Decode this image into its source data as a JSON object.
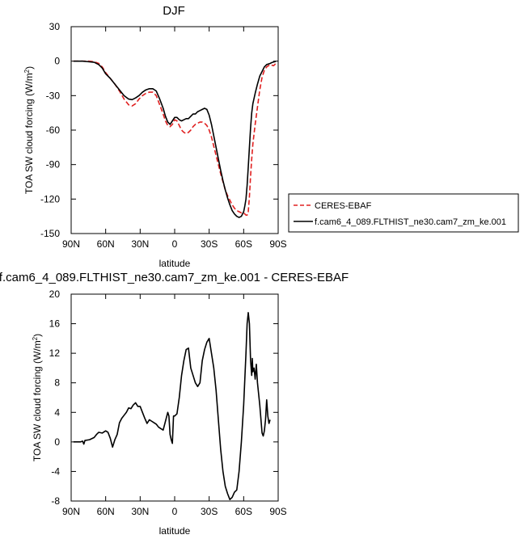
{
  "chart_data": [
    {
      "type": "line",
      "title": "DJF",
      "xlabel": "latitude",
      "ylabel": "TOA SW cloud forcing (W/m",
      "ylabel_superscript": "2",
      "ylabel_close": ")",
      "xlim": [
        90,
        -90
      ],
      "ylim": [
        -150,
        30
      ],
      "xticks": [
        90,
        60,
        30,
        0,
        -30,
        -60,
        -90
      ],
      "xtick_labels": [
        "90N",
        "60N",
        "30N",
        "0",
        "30S",
        "60S",
        "90S"
      ],
      "yticks": [
        -150,
        -120,
        -90,
        -60,
        -30,
        0,
        30
      ],
      "ytick_labels": [
        "-150",
        "-120",
        "-90",
        "-60",
        "-30",
        "0",
        "30"
      ],
      "legend_position": "right",
      "series": [
        {
          "name": "CERES-EBAF",
          "color": "#e02020",
          "dash": "dashed",
          "points": [
            [
              88,
              0
            ],
            [
              85,
              0
            ],
            [
              80,
              0
            ],
            [
              75,
              0
            ],
            [
              70,
              -0.5
            ],
            [
              66,
              -2
            ],
            [
              63,
              -5
            ],
            [
              60,
              -10
            ],
            [
              56,
              -15
            ],
            [
              52,
              -20
            ],
            [
              48,
              -26
            ],
            [
              44,
              -33
            ],
            [
              40,
              -38
            ],
            [
              37,
              -39
            ],
            [
              34,
              -37
            ],
            [
              31,
              -33
            ],
            [
              28,
              -30
            ],
            [
              25,
              -28
            ],
            [
              22,
              -27
            ],
            [
              19,
              -27
            ],
            [
              16,
              -30
            ],
            [
              13,
              -38
            ],
            [
              10,
              -46
            ],
            [
              8,
              -52
            ],
            [
              6,
              -56
            ],
            [
              4,
              -57
            ],
            [
              2,
              -55
            ],
            [
              0,
              -51
            ],
            [
              -2,
              -52
            ],
            [
              -4,
              -56
            ],
            [
              -6,
              -60
            ],
            [
              -8,
              -62
            ],
            [
              -10,
              -63
            ],
            [
              -12,
              -62
            ],
            [
              -14,
              -60
            ],
            [
              -16,
              -57
            ],
            [
              -18,
              -55
            ],
            [
              -20,
              -54
            ],
            [
              -22,
              -53
            ],
            [
              -24,
              -53
            ],
            [
              -26,
              -54
            ],
            [
              -28,
              -56
            ],
            [
              -30,
              -60
            ],
            [
              -32,
              -66
            ],
            [
              -34,
              -74
            ],
            [
              -36,
              -82
            ],
            [
              -38,
              -90
            ],
            [
              -40,
              -98
            ],
            [
              -42,
              -105
            ],
            [
              -44,
              -112
            ],
            [
              -46,
              -117
            ],
            [
              -48,
              -121
            ],
            [
              -50,
              -125
            ],
            [
              -52,
              -128
            ],
            [
              -54,
              -130
            ],
            [
              -56,
              -131
            ],
            [
              -58,
              -132
            ],
            [
              -60,
              -132
            ],
            [
              -62,
              -134
            ],
            [
              -63,
              -134
            ],
            [
              -64,
              -131
            ],
            [
              -65,
              -118
            ],
            [
              -66,
              -100
            ],
            [
              -67,
              -85
            ],
            [
              -68,
              -72
            ],
            [
              -70,
              -55
            ],
            [
              -72,
              -40
            ],
            [
              -74,
              -25
            ],
            [
              -76,
              -14
            ],
            [
              -78,
              -8
            ],
            [
              -80,
              -5
            ],
            [
              -83,
              -3
            ],
            [
              -86,
              -4
            ],
            [
              -87,
              -3
            ],
            [
              -88,
              -2
            ]
          ]
        },
        {
          "name": "f.cam6_4_089.FLTHIST_ne30.cam7_zm_ke.001",
          "color": "#000000",
          "dash": "solid",
          "points": [
            [
              88,
              0
            ],
            [
              85,
              0
            ],
            [
              80,
              0
            ],
            [
              75,
              -0.5
            ],
            [
              70,
              -1
            ],
            [
              66,
              -3
            ],
            [
              63,
              -6
            ],
            [
              60,
              -11
            ],
            [
              56,
              -15
            ],
            [
              52,
              -20
            ],
            [
              48,
              -25
            ],
            [
              44,
              -30
            ],
            [
              40,
              -33
            ],
            [
              37,
              -33.5
            ],
            [
              34,
              -32
            ],
            [
              31,
              -30
            ],
            [
              28,
              -27
            ],
            [
              25,
              -25
            ],
            [
              22,
              -24
            ],
            [
              19,
              -24
            ],
            [
              16,
              -26
            ],
            [
              13,
              -33
            ],
            [
              10,
              -41
            ],
            [
              8,
              -48
            ],
            [
              6,
              -53
            ],
            [
              4,
              -55
            ],
            [
              2,
              -52
            ],
            [
              0,
              -49
            ],
            [
              -2,
              -49
            ],
            [
              -4,
              -51
            ],
            [
              -6,
              -52
            ],
            [
              -8,
              -51
            ],
            [
              -10,
              -50
            ],
            [
              -12,
              -50
            ],
            [
              -14,
              -48
            ],
            [
              -16,
              -46
            ],
            [
              -18,
              -46
            ],
            [
              -20,
              -44
            ],
            [
              -22,
              -43
            ],
            [
              -24,
              -42
            ],
            [
              -26,
              -41
            ],
            [
              -28,
              -42
            ],
            [
              -30,
              -47
            ],
            [
              -32,
              -55
            ],
            [
              -34,
              -65
            ],
            [
              -36,
              -75
            ],
            [
              -38,
              -85
            ],
            [
              -40,
              -95
            ],
            [
              -42,
              -104
            ],
            [
              -44,
              -112
            ],
            [
              -46,
              -119
            ],
            [
              -48,
              -125
            ],
            [
              -50,
              -130
            ],
            [
              -52,
              -133
            ],
            [
              -54,
              -135
            ],
            [
              -56,
              -136
            ],
            [
              -58,
              -135
            ],
            [
              -60,
              -131
            ],
            [
              -61,
              -126
            ],
            [
              -62,
              -120
            ],
            [
              -63,
              -108
            ],
            [
              -64,
              -92
            ],
            [
              -65,
              -75
            ],
            [
              -66,
              -58
            ],
            [
              -67,
              -45
            ],
            [
              -68,
              -37
            ],
            [
              -70,
              -28
            ],
            [
              -72,
              -20
            ],
            [
              -74,
              -13
            ],
            [
              -76,
              -9
            ],
            [
              -78,
              -5
            ],
            [
              -80,
              -3
            ],
            [
              -83,
              -2
            ],
            [
              -85,
              -1
            ],
            [
              -87,
              -0.5
            ],
            [
              -88,
              0
            ]
          ]
        }
      ]
    },
    {
      "type": "line",
      "title": "f.cam6_4_089.FLTHIST_ne30.cam7_zm_ke.001 - CERES-EBAF",
      "xlabel": "latitude",
      "ylabel": "TOA SW cloud forcing (W/m",
      "ylabel_superscript": "2",
      "ylabel_close": ")",
      "xlim": [
        90,
        -90
      ],
      "ylim": [
        -8,
        20
      ],
      "xticks": [
        90,
        60,
        30,
        0,
        -30,
        -60,
        -90
      ],
      "xtick_labels": [
        "90N",
        "60N",
        "30N",
        "0",
        "30S",
        "60S",
        "90S"
      ],
      "yticks": [
        -8,
        -4,
        0,
        4,
        8,
        12,
        16,
        20
      ],
      "ytick_labels": [
        "-8",
        "-4",
        "0",
        "4",
        "8",
        "12",
        "16",
        "20"
      ],
      "series": [
        {
          "color": "#000000",
          "dash": "solid",
          "points": [
            [
              88,
              0
            ],
            [
              82,
              0
            ],
            [
              80,
              0.1
            ],
            [
              79,
              -0.3
            ],
            [
              78,
              0.2
            ],
            [
              74,
              0.3
            ],
            [
              70,
              0.6
            ],
            [
              68,
              1
            ],
            [
              66,
              1.3
            ],
            [
              63,
              1.2
            ],
            [
              60,
              1.5
            ],
            [
              58,
              1.3
            ],
            [
              56,
              0.5
            ],
            [
              54,
              -0.7
            ],
            [
              52,
              0.3
            ],
            [
              50,
              1
            ],
            [
              48,
              2.6
            ],
            [
              46,
              3.2
            ],
            [
              44,
              3.6
            ],
            [
              42,
              4
            ],
            [
              40,
              4.6
            ],
            [
              38,
              4.5
            ],
            [
              36,
              5
            ],
            [
              34,
              5.3
            ],
            [
              32,
              4.8
            ],
            [
              30,
              4.8
            ],
            [
              28,
              4
            ],
            [
              26,
              3.2
            ],
            [
              24,
              2.5
            ],
            [
              22,
              3
            ],
            [
              20,
              2.8
            ],
            [
              18,
              2.6
            ],
            [
              16,
              2.4
            ],
            [
              14,
              2
            ],
            [
              12,
              1.8
            ],
            [
              10,
              1.6
            ],
            [
              8,
              2.8
            ],
            [
              6,
              4
            ],
            [
              5,
              3.5
            ],
            [
              4,
              1
            ],
            [
              3,
              0.3
            ],
            [
              2,
              -0.2
            ],
            [
              1,
              3.5
            ],
            [
              0,
              3.5
            ],
            [
              -2,
              3.8
            ],
            [
              -4,
              6
            ],
            [
              -6,
              9
            ],
            [
              -8,
              11
            ],
            [
              -10,
              12.5
            ],
            [
              -12,
              12.7
            ],
            [
              -14,
              10
            ],
            [
              -16,
              9
            ],
            [
              -18,
              8
            ],
            [
              -20,
              7.5
            ],
            [
              -22,
              8
            ],
            [
              -24,
              11
            ],
            [
              -26,
              12.5
            ],
            [
              -28,
              13.5
            ],
            [
              -30,
              14
            ],
            [
              -32,
              12
            ],
            [
              -34,
              10
            ],
            [
              -36,
              7
            ],
            [
              -38,
              3
            ],
            [
              -40,
              -1
            ],
            [
              -42,
              -4
            ],
            [
              -44,
              -6
            ],
            [
              -46,
              -7
            ],
            [
              -48,
              -7.8
            ],
            [
              -50,
              -7.5
            ],
            [
              -52,
              -6.8
            ],
            [
              -54,
              -6.5
            ],
            [
              -56,
              -4
            ],
            [
              -58,
              0
            ],
            [
              -60,
              5
            ],
            [
              -62,
              12
            ],
            [
              -63,
              16
            ],
            [
              -64,
              17.5
            ],
            [
              -65,
              16
            ],
            [
              -66,
              11
            ],
            [
              -67,
              9
            ],
            [
              -67.5,
              11.3
            ],
            [
              -68,
              9.5
            ],
            [
              -69,
              10
            ],
            [
              -70,
              8.5
            ],
            [
              -71,
              10.5
            ],
            [
              -72,
              8
            ],
            [
              -73,
              6.5
            ],
            [
              -74,
              5
            ],
            [
              -76,
              1.2
            ],
            [
              -77,
              0.8
            ],
            [
              -78,
              1.5
            ],
            [
              -79,
              3
            ],
            [
              -80,
              5.7
            ],
            [
              -81,
              3.5
            ],
            [
              -82,
              2.5
            ],
            [
              -83,
              3
            ]
          ]
        }
      ]
    }
  ]
}
